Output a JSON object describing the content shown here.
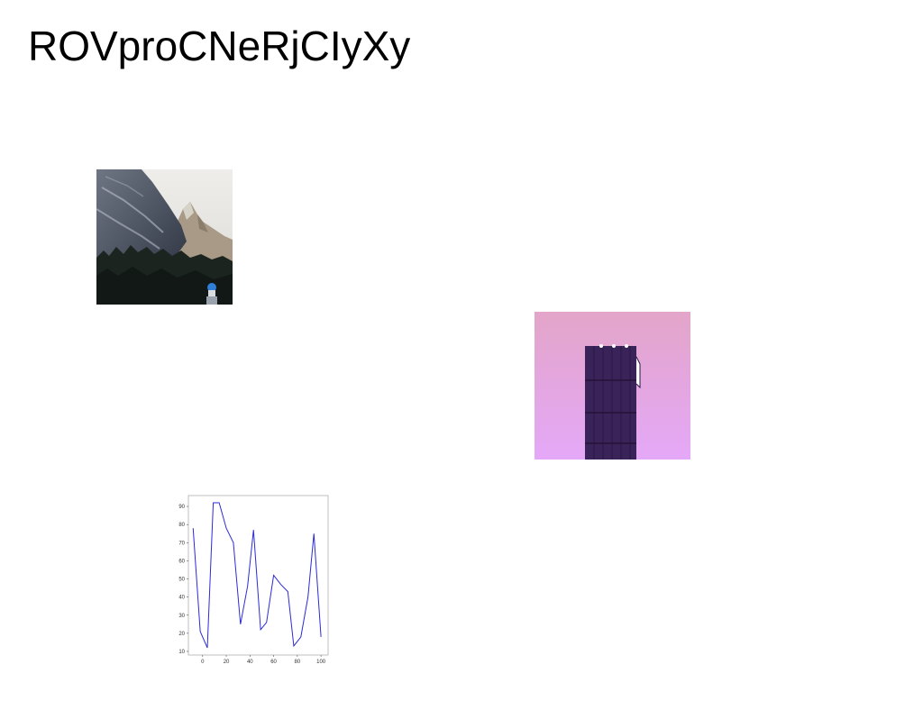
{
  "page": {
    "title": "ROVproCNeRjCIyXy"
  },
  "images": [
    {
      "name": "mountain-photo",
      "subject": "rocky mountain peaks over a dark pine forest"
    },
    {
      "name": "tower-photo",
      "subject": "dark purple tower against a pink sky"
    }
  ],
  "colors": {
    "background": "#ffffff",
    "title": "#000000",
    "line_series": "#2b2bd6",
    "tower_sky_top": "#e3a5c8",
    "tower_sky_bottom": "#e4a8f8",
    "tower_body": "#3a2358"
  },
  "chart_data": {
    "type": "line",
    "title": "",
    "xlabel": "",
    "ylabel": "",
    "xlim": [
      -12,
      106
    ],
    "ylim": [
      8,
      96
    ],
    "xticks": [
      0,
      20,
      40,
      60,
      80,
      100
    ],
    "yticks": [
      10,
      20,
      30,
      40,
      50,
      60,
      70,
      80,
      90
    ],
    "grid": false,
    "series": [
      {
        "x": [
          -8,
          -2,
          4,
          9,
          14,
          20,
          26,
          32,
          38,
          43,
          49,
          54,
          60,
          66,
          72,
          77,
          83,
          89,
          94,
          100
        ],
        "y": [
          78,
          21,
          12,
          92,
          92,
          78,
          70,
          25,
          46,
          77,
          22,
          26,
          52,
          47,
          43,
          13,
          18,
          40,
          75,
          18
        ]
      }
    ]
  }
}
